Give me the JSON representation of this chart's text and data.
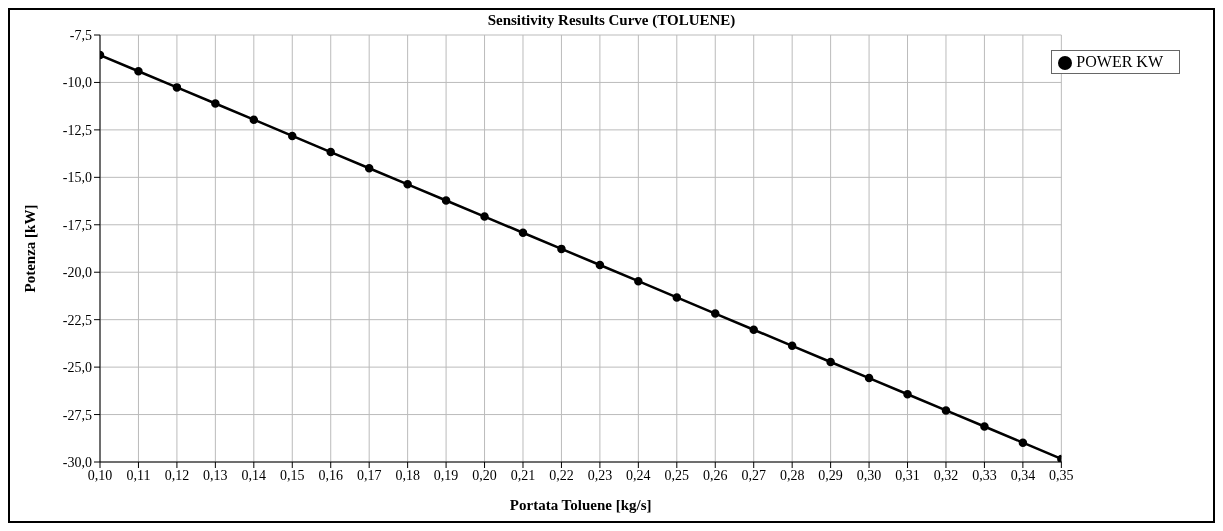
{
  "chart_data": {
    "type": "line",
    "title": "Sensitivity Results Curve (TOLUENE)",
    "xlabel": "Portata Toluene [kg/s]",
    "ylabel": "Potenza [kW]",
    "x": [
      0.1,
      0.11,
      0.12,
      0.13,
      0.14,
      0.15,
      0.16,
      0.17,
      0.18,
      0.19,
      0.2,
      0.21,
      0.22,
      0.23,
      0.24,
      0.25,
      0.26,
      0.27,
      0.28,
      0.29,
      0.3,
      0.31,
      0.32,
      0.33,
      0.34,
      0.35
    ],
    "series": [
      {
        "name": "POWER KW",
        "color": "#000000",
        "values": [
          -8.56,
          -9.41,
          -10.26,
          -11.11,
          -11.96,
          -12.82,
          -13.67,
          -14.52,
          -15.37,
          -16.22,
          -17.07,
          -17.92,
          -18.77,
          -19.62,
          -20.47,
          -21.33,
          -22.18,
          -23.03,
          -23.88,
          -24.73,
          -25.58,
          -26.43,
          -27.28,
          -28.13,
          -28.98,
          -29.84
        ]
      }
    ],
    "xlim": [
      0.1,
      0.35
    ],
    "xticks": [
      {
        "value": 0.1,
        "label": "0,10"
      },
      {
        "value": 0.11,
        "label": "0,11"
      },
      {
        "value": 0.12,
        "label": "0,12"
      },
      {
        "value": 0.13,
        "label": "0,13"
      },
      {
        "value": 0.14,
        "label": "0,14"
      },
      {
        "value": 0.15,
        "label": "0,15"
      },
      {
        "value": 0.16,
        "label": "0,16"
      },
      {
        "value": 0.17,
        "label": "0,17"
      },
      {
        "value": 0.18,
        "label": "0,18"
      },
      {
        "value": 0.19,
        "label": "0,19"
      },
      {
        "value": 0.2,
        "label": "0,20"
      },
      {
        "value": 0.21,
        "label": "0,21"
      },
      {
        "value": 0.22,
        "label": "0,22"
      },
      {
        "value": 0.23,
        "label": "0,23"
      },
      {
        "value": 0.24,
        "label": "0,24"
      },
      {
        "value": 0.25,
        "label": "0,25"
      },
      {
        "value": 0.26,
        "label": "0,26"
      },
      {
        "value": 0.27,
        "label": "0,27"
      },
      {
        "value": 0.28,
        "label": "0,28"
      },
      {
        "value": 0.29,
        "label": "0,29"
      },
      {
        "value": 0.3,
        "label": "0,30"
      },
      {
        "value": 0.31,
        "label": "0,31"
      },
      {
        "value": 0.32,
        "label": "0,32"
      },
      {
        "value": 0.33,
        "label": "0,33"
      },
      {
        "value": 0.34,
        "label": "0,34"
      },
      {
        "value": 0.35,
        "label": "0,35"
      }
    ],
    "ylim": [
      -30,
      -7.5
    ],
    "yticks": [
      {
        "value": -30,
        "label": "-30,0"
      },
      {
        "value": -27.5,
        "label": "-27,5"
      },
      {
        "value": -25,
        "label": "-25,0"
      },
      {
        "value": -22.5,
        "label": "-22,5"
      },
      {
        "value": -20,
        "label": "-20,0"
      },
      {
        "value": -17.5,
        "label": "-17,5"
      },
      {
        "value": -15,
        "label": "-15,0"
      },
      {
        "value": -12.5,
        "label": "-12,5"
      },
      {
        "value": -10,
        "label": "-10,0"
      },
      {
        "value": -7.5,
        "label": "-7,5"
      }
    ],
    "grid": true,
    "legend": "top right",
    "marker": "circle",
    "line_style": "solid"
  }
}
